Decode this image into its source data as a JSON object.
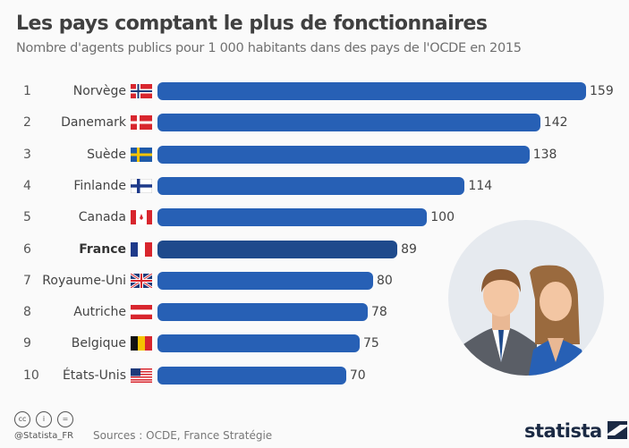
{
  "chart_data": {
    "type": "bar",
    "orientation": "horizontal",
    "title": "Les pays comptant le plus de fonctionnaires",
    "subtitle": "Nombre d'agents publics pour 1 000 habitants dans des pays de l'OCDE en 2015",
    "ranks": [
      "1",
      "2",
      "3",
      "4",
      "5",
      "6",
      "7",
      "8",
      "9",
      "10"
    ],
    "categories": [
      "Norvège",
      "Danemark",
      "Suède",
      "Finlande",
      "Canada",
      "France",
      "Royaume-Uni",
      "Autriche",
      "Belgique",
      "États-Unis"
    ],
    "values": [
      159,
      142,
      138,
      114,
      100,
      89,
      80,
      78,
      75,
      70
    ],
    "highlight": "France",
    "colors": {
      "bar": "#2760b5",
      "highlight": "#1e4a8c"
    },
    "grid": false
  },
  "footer": {
    "handle": "@Statista_FR",
    "source": "Sources : OCDE, France Stratégie",
    "logo": "statista",
    "cc_icons": [
      "cc",
      "by",
      "nd"
    ]
  }
}
